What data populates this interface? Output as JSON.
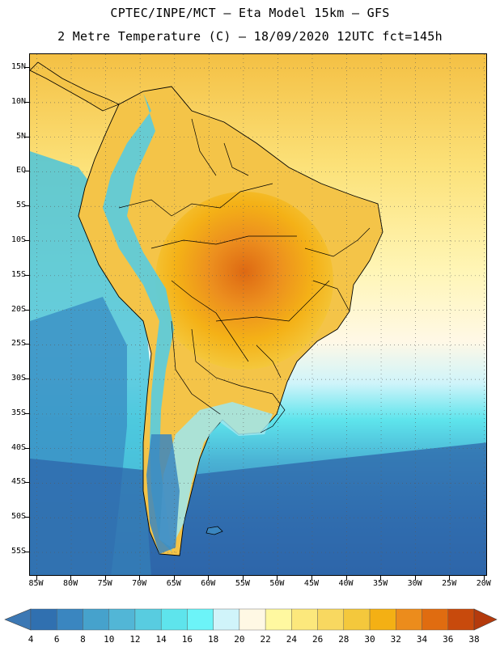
{
  "header": {
    "line1": "CPTEC/INPE/MCT –  Eta Model 15km – GFS",
    "line2": "2 Metre Temperature (C) – 18/09/2020 12UTC fct=145h"
  },
  "map": {
    "extent": {
      "lon_min": -86,
      "lon_max": -19.5,
      "lat_min": -58.5,
      "lat_max": 17
    },
    "lat_ticks": [
      {
        "lat": 15,
        "label": "15N"
      },
      {
        "lat": 10,
        "label": "10N"
      },
      {
        "lat": 5,
        "label": "5N"
      },
      {
        "lat": 0,
        "label": "EQ"
      },
      {
        "lat": -5,
        "label": "5S"
      },
      {
        "lat": -10,
        "label": "10S"
      },
      {
        "lat": -15,
        "label": "15S"
      },
      {
        "lat": -20,
        "label": "20S"
      },
      {
        "lat": -25,
        "label": "25S"
      },
      {
        "lat": -30,
        "label": "30S"
      },
      {
        "lat": -35,
        "label": "35S"
      },
      {
        "lat": -40,
        "label": "40S"
      },
      {
        "lat": -45,
        "label": "45S"
      },
      {
        "lat": -50,
        "label": "50S"
      },
      {
        "lat": -55,
        "label": "55S"
      }
    ],
    "lon_ticks": [
      {
        "lon": -85,
        "label": "85W"
      },
      {
        "lon": -80,
        "label": "80W"
      },
      {
        "lon": -75,
        "label": "75W"
      },
      {
        "lon": -70,
        "label": "70W"
      },
      {
        "lon": -65,
        "label": "65W"
      },
      {
        "lon": -60,
        "label": "60W"
      },
      {
        "lon": -55,
        "label": "55W"
      },
      {
        "lon": -50,
        "label": "50W"
      },
      {
        "lon": -45,
        "label": "45W"
      },
      {
        "lon": -40,
        "label": "40W"
      },
      {
        "lon": -35,
        "label": "35W"
      },
      {
        "lon": -30,
        "label": "30W"
      },
      {
        "lon": -25,
        "label": "25W"
      },
      {
        "lon": -20,
        "label": "20W"
      }
    ]
  },
  "colorbar": {
    "labels": [
      "4",
      "6",
      "8",
      "10",
      "12",
      "14",
      "16",
      "18",
      "20",
      "22",
      "24",
      "26",
      "28",
      "30",
      "32",
      "34",
      "36",
      "38"
    ],
    "low_color": "#3c78b4",
    "high_color": "#b43a0c",
    "colors": [
      "#3070b0",
      "#3a86c0",
      "#46a2cc",
      "#52b6d6",
      "#58cce0",
      "#5ee4ec",
      "#6cf4f8",
      "#d0f4fa",
      "#fff8e4",
      "#fff8a0",
      "#fce87c",
      "#f8d860",
      "#f4c83c",
      "#f4b014",
      "#ec8c1c",
      "#e06c10",
      "#c84a0c"
    ]
  }
}
